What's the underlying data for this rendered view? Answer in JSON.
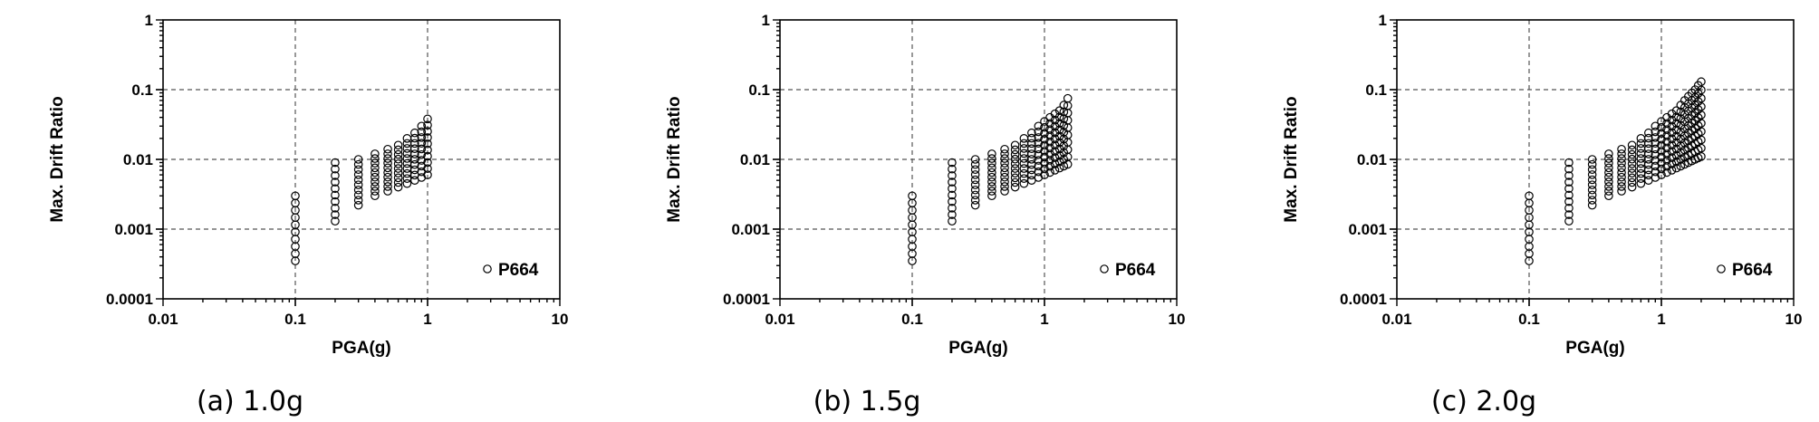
{
  "chart_data": [
    {
      "type": "scatter",
      "caption": "(a) 1.0g",
      "xlabel": "PGA(g)",
      "ylabel": "Max. Drift Ratio",
      "xscale": "log",
      "yscale": "log",
      "xlim": [
        0.01,
        10
      ],
      "ylim": [
        0.0001,
        1
      ],
      "xticks": [
        "0.01",
        "0.1",
        "1",
        "10"
      ],
      "yticks": [
        "0.0001",
        "0.001",
        "0.01",
        "0.1",
        "1"
      ],
      "grid": true,
      "legend_position": "bottom-right",
      "series": [
        {
          "name": "P664",
          "marker": "open-circle",
          "x_levels": [
            0.1,
            0.2,
            0.3,
            0.4,
            0.5,
            0.6,
            0.7,
            0.8,
            0.9,
            1.0
          ],
          "y_ranges": [
            [
              0.00035,
              0.003
            ],
            [
              0.0013,
              0.009
            ],
            [
              0.0022,
              0.01
            ],
            [
              0.003,
              0.012
            ],
            [
              0.0035,
              0.014
            ],
            [
              0.004,
              0.016
            ],
            [
              0.0045,
              0.02
            ],
            [
              0.005,
              0.024
            ],
            [
              0.0055,
              0.03
            ],
            [
              0.006,
              0.038
            ]
          ]
        }
      ]
    },
    {
      "type": "scatter",
      "caption": "(b) 1.5g",
      "xlabel": "PGA(g)",
      "ylabel": "Max. Drift Ratio",
      "xscale": "log",
      "yscale": "log",
      "xlim": [
        0.01,
        10
      ],
      "ylim": [
        0.0001,
        1
      ],
      "xticks": [
        "0.01",
        "0.1",
        "1",
        "10"
      ],
      "yticks": [
        "0.0001",
        "0.001",
        "0.01",
        "0.1",
        "1"
      ],
      "grid": true,
      "legend_position": "bottom-right",
      "series": [
        {
          "name": "P664",
          "marker": "open-circle",
          "x_levels": [
            0.1,
            0.2,
            0.3,
            0.4,
            0.5,
            0.6,
            0.7,
            0.8,
            0.9,
            1.0,
            1.1,
            1.2,
            1.3,
            1.4,
            1.5
          ],
          "y_ranges": [
            [
              0.00035,
              0.003
            ],
            [
              0.0013,
              0.009
            ],
            [
              0.0022,
              0.01
            ],
            [
              0.003,
              0.012
            ],
            [
              0.0035,
              0.014
            ],
            [
              0.004,
              0.016
            ],
            [
              0.0045,
              0.02
            ],
            [
              0.005,
              0.024
            ],
            [
              0.0055,
              0.03
            ],
            [
              0.006,
              0.035
            ],
            [
              0.0065,
              0.04
            ],
            [
              0.007,
              0.045
            ],
            [
              0.0075,
              0.05
            ],
            [
              0.008,
              0.06
            ],
            [
              0.0085,
              0.075
            ]
          ]
        }
      ]
    },
    {
      "type": "scatter",
      "caption": "(c) 2.0g",
      "xlabel": "PGA(g)",
      "ylabel": "Max. Drift Ratio",
      "xscale": "log",
      "yscale": "log",
      "xlim": [
        0.01,
        10
      ],
      "ylim": [
        0.0001,
        1
      ],
      "xticks": [
        "0.01",
        "0.1",
        "1",
        "10"
      ],
      "yticks": [
        "0.0001",
        "0.001",
        "0.01",
        "0.1",
        "1"
      ],
      "grid": true,
      "legend_position": "bottom-right",
      "series": [
        {
          "name": "P664",
          "marker": "open-circle",
          "x_levels": [
            0.1,
            0.2,
            0.3,
            0.4,
            0.5,
            0.6,
            0.7,
            0.8,
            0.9,
            1.0,
            1.1,
            1.2,
            1.3,
            1.4,
            1.5,
            1.6,
            1.7,
            1.8,
            1.9,
            2.0
          ],
          "y_ranges": [
            [
              0.00035,
              0.003
            ],
            [
              0.0013,
              0.009
            ],
            [
              0.0022,
              0.01
            ],
            [
              0.003,
              0.012
            ],
            [
              0.0035,
              0.014
            ],
            [
              0.004,
              0.016
            ],
            [
              0.0045,
              0.02
            ],
            [
              0.005,
              0.024
            ],
            [
              0.0055,
              0.03
            ],
            [
              0.006,
              0.035
            ],
            [
              0.0065,
              0.04
            ],
            [
              0.007,
              0.045
            ],
            [
              0.0075,
              0.05
            ],
            [
              0.008,
              0.06
            ],
            [
              0.0085,
              0.07
            ],
            [
              0.009,
              0.08
            ],
            [
              0.0095,
              0.09
            ],
            [
              0.01,
              0.1
            ],
            [
              0.0105,
              0.115
            ],
            [
              0.011,
              0.13
            ]
          ]
        }
      ]
    }
  ]
}
